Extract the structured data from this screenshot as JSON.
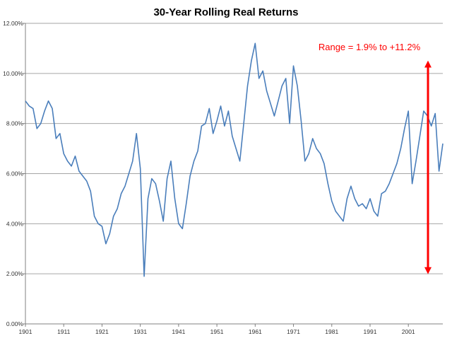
{
  "chart_data": {
    "type": "line",
    "title": "30-Year Rolling Real Returns",
    "xlabel": "",
    "ylabel": "",
    "xlim": [
      1901,
      2010
    ],
    "ylim": [
      0,
      12
    ],
    "y_ticks": [
      0,
      2,
      4,
      6,
      8,
      10,
      12
    ],
    "y_tick_labels": [
      "0.00%",
      "2.00%",
      "4.00%",
      "6.00%",
      "8.00%",
      "10.00%",
      "12.00%"
    ],
    "x_ticks": [
      1901,
      1911,
      1921,
      1931,
      1941,
      1951,
      1961,
      1971,
      1981,
      1991,
      2001
    ],
    "x_tick_labels": [
      "1901",
      "1911",
      "1921",
      "1931",
      "1941",
      "1951",
      "1961",
      "1971",
      "1981",
      "1991",
      "2001"
    ],
    "grid": "horizontal",
    "line_color": "#4a7ebb",
    "annotation_color": "#ff0000",
    "annotation": {
      "text": "Range = 1.9% to +11.2%",
      "arrow_from": 1.9,
      "arrow_to": 10.6
    },
    "series": [
      {
        "x": [
          1901,
          1902,
          1903,
          1904,
          1905,
          1906,
          1907,
          1908,
          1909,
          1910,
          1911,
          1912,
          1913,
          1914,
          1915,
          1916,
          1917,
          1918,
          1919,
          1920,
          1921,
          1922,
          1923,
          1924,
          1925,
          1926,
          1927,
          1928,
          1929,
          1930,
          1931,
          1932,
          1933,
          1934,
          1935,
          1936,
          1937,
          1938,
          1939,
          1940,
          1941,
          1942,
          1943,
          1944,
          1945,
          1946,
          1947,
          1948,
          1949,
          1950,
          1951,
          1952,
          1953,
          1954,
          1955,
          1956,
          1957,
          1958,
          1959,
          1960,
          1961,
          1962,
          1963,
          1964,
          1965,
          1966,
          1967,
          1968,
          1969,
          1970,
          1971,
          1972,
          1973,
          1974,
          1975,
          1976,
          1977,
          1978,
          1979,
          1980,
          1981,
          1982,
          1983,
          1984,
          1985,
          1986,
          1987,
          1988,
          1989,
          1990,
          1991,
          1992,
          1993,
          1994,
          1995,
          1996,
          1997,
          1998,
          1999,
          2000,
          2001,
          2002,
          2003,
          2004,
          2005,
          2006,
          2007,
          2008,
          2009,
          2010
        ],
        "values": [
          8.9,
          8.7,
          8.6,
          7.8,
          8.0,
          8.5,
          8.9,
          8.6,
          7.4,
          7.6,
          6.8,
          6.5,
          6.3,
          6.7,
          6.1,
          5.9,
          5.7,
          5.3,
          4.3,
          4.0,
          3.9,
          3.2,
          3.6,
          4.3,
          4.6,
          5.2,
          5.5,
          6.0,
          6.5,
          7.6,
          6.2,
          1.9,
          5.0,
          5.8,
          5.6,
          4.9,
          4.1,
          5.8,
          6.5,
          5.0,
          4.0,
          3.8,
          4.8,
          5.9,
          6.5,
          6.9,
          7.9,
          8.0,
          8.6,
          7.6,
          8.1,
          8.7,
          7.9,
          8.5,
          7.5,
          7.0,
          6.5,
          8.0,
          9.5,
          10.5,
          11.2,
          9.8,
          10.1,
          9.3,
          8.8,
          8.3,
          8.9,
          9.5,
          9.8,
          8.0,
          10.3,
          9.5,
          8.1,
          6.5,
          6.8,
          7.4,
          7.0,
          6.8,
          6.4,
          5.6,
          4.9,
          4.5,
          4.3,
          4.1,
          5.0,
          5.5,
          5.0,
          4.7,
          4.8,
          4.6,
          5.0,
          4.5,
          4.3,
          5.2,
          5.3,
          5.6,
          6.0,
          6.4,
          7.0,
          7.8,
          8.5,
          5.6,
          6.5,
          7.5,
          8.5,
          8.3,
          7.9,
          8.4,
          6.1,
          7.2
        ]
      }
    ]
  }
}
